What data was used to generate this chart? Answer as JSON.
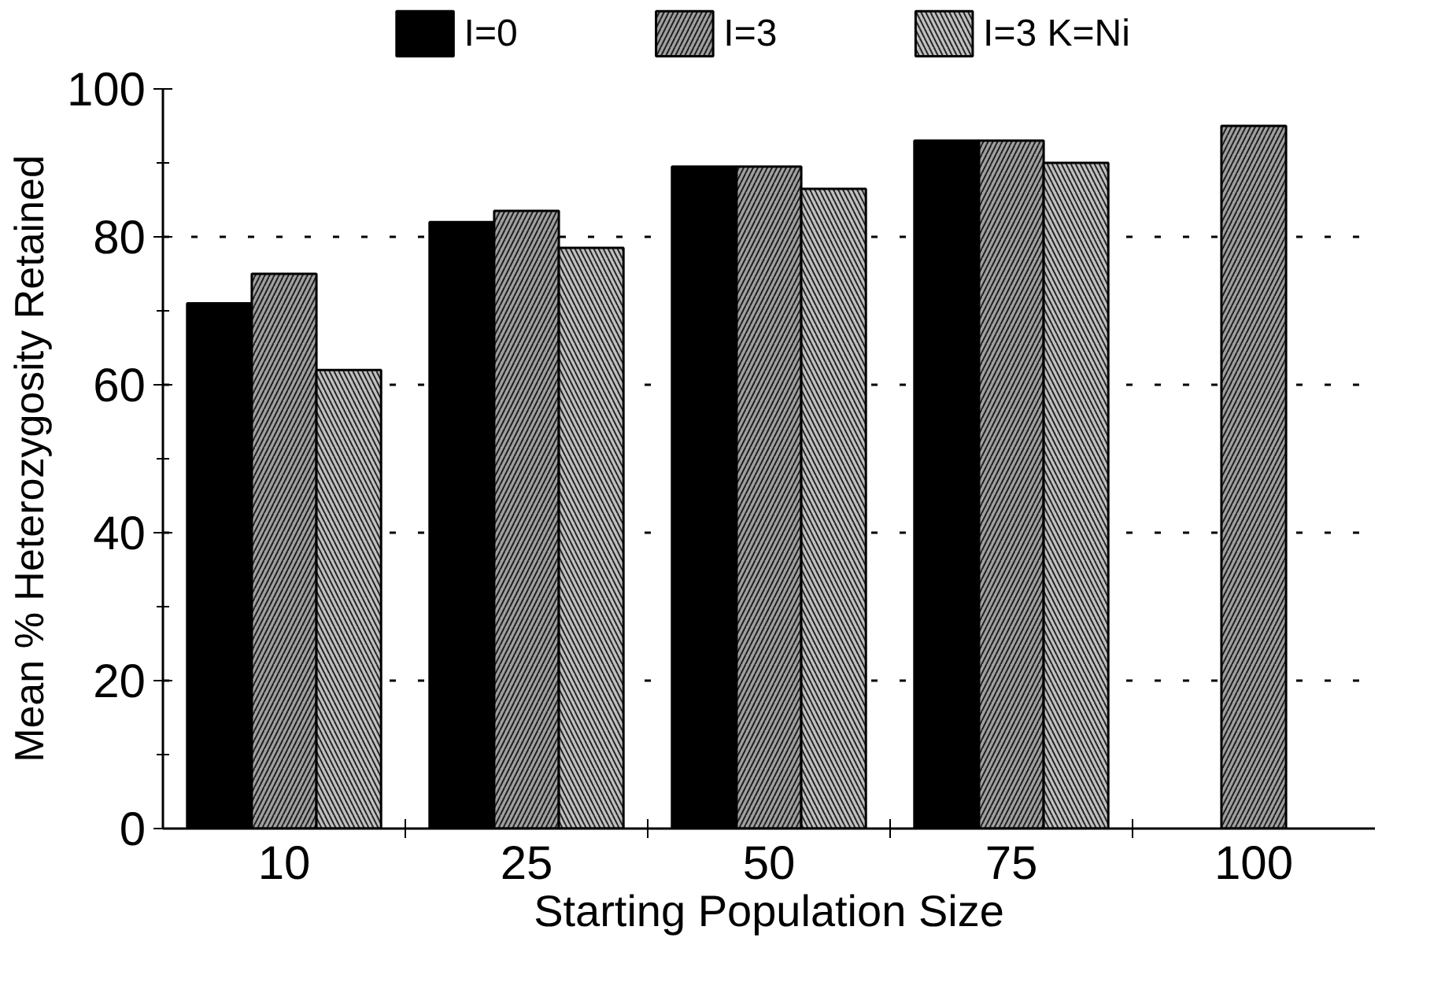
{
  "chart_data": {
    "type": "bar",
    "xlabel": "Starting Population Size",
    "ylabel": "Mean % Heterozygosity Retained",
    "categories": [
      "10",
      "25",
      "50",
      "75",
      "100"
    ],
    "series": [
      {
        "name": "I=0",
        "color": "#000000",
        "values": [
          71,
          82,
          89.5,
          93,
          null
        ]
      },
      {
        "name": "I=3",
        "color": "#a0a0a0",
        "values": [
          75,
          83.5,
          89.5,
          93,
          95
        ]
      },
      {
        "name": "I=3 K=Ni",
        "color": "#c0c0c0",
        "values": [
          62,
          78.5,
          86.5,
          90,
          null
        ]
      }
    ],
    "ylim": [
      0,
      100
    ],
    "yticks": [
      0,
      20,
      40,
      60,
      80,
      100
    ],
    "grid": "y",
    "legend": "top"
  }
}
